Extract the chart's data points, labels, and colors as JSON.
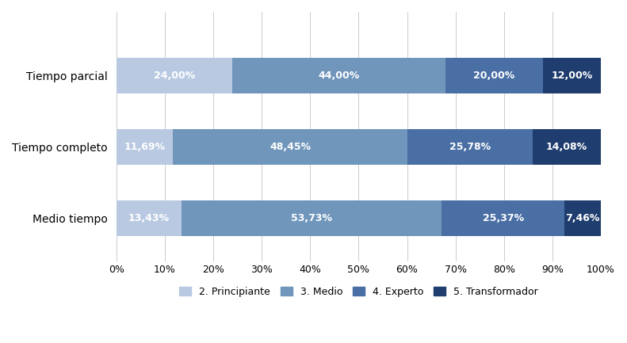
{
  "categories": [
    "Tiempo parcial",
    "Tiempo completo",
    "Medio tiempo"
  ],
  "series": {
    "2. Principiante": [
      24.0,
      11.69,
      13.43
    ],
    "3. Medio": [
      44.0,
      48.45,
      53.73
    ],
    "4. Experto": [
      20.0,
      25.78,
      25.37
    ],
    "5. Transformador": [
      12.0,
      14.08,
      7.46
    ]
  },
  "labels": {
    "2. Principiante": [
      "24,00%",
      "11,69%",
      "13,43%"
    ],
    "3. Medio": [
      "44,00%",
      "48,45%",
      "53,73%"
    ],
    "4. Experto": [
      "20,00%",
      "25,78%",
      "25,37%"
    ],
    "5. Transformador": [
      "12,00%",
      "14,08%",
      "7,46%"
    ]
  },
  "colors": {
    "2. Principiante": "#b8c9e1",
    "3. Medio": "#7096bc",
    "4. Experto": "#4a6fa5",
    "5. Transformador": "#1f3d6e"
  },
  "xticks": [
    0,
    10,
    20,
    30,
    40,
    50,
    60,
    70,
    80,
    90,
    100
  ],
  "background_color": "#ffffff",
  "bar_height": 0.5,
  "text_color": "#ffffff",
  "label_fontsize": 9,
  "axis_label_fontsize": 9,
  "legend_fontsize": 9,
  "ytick_fontsize": 10
}
